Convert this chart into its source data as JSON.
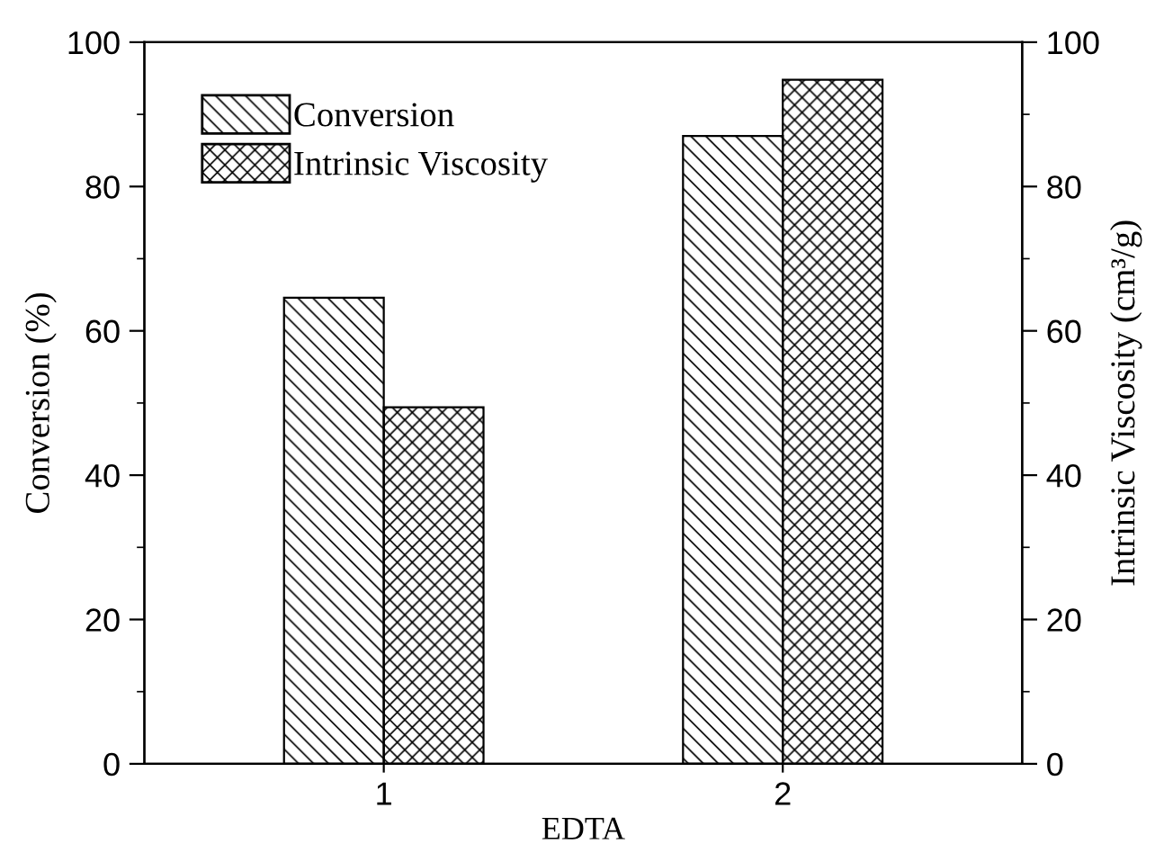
{
  "chart_data": {
    "type": "bar",
    "xlabel": "EDTA",
    "ylabel": "Conversion (%)",
    "y2label": "Intrinsic Viscosity (cm³/g)",
    "categories": [
      "1",
      "2"
    ],
    "series": [
      {
        "name": "Conversion",
        "color": "#000000",
        "values": [
          64.6,
          87.0
        ]
      },
      {
        "name": "Intrinsic Viscosity",
        "color": "#000000",
        "values": [
          49.4,
          94.8
        ],
        "axis": "y2"
      }
    ],
    "ylim": [
      0,
      100
    ],
    "yticks": [
      0,
      20,
      40,
      60,
      80,
      100
    ],
    "y2lim": [
      0,
      100
    ],
    "y2ticks": [
      0,
      20,
      40,
      60,
      80,
      100
    ],
    "legend": "top left",
    "grid": false
  }
}
